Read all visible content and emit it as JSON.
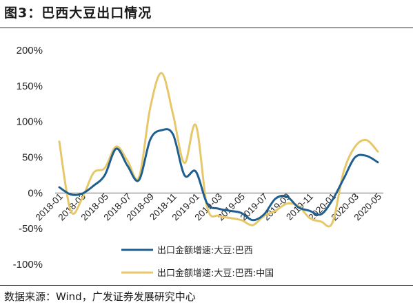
{
  "header": {
    "title": "图3：巴西大豆出口情况"
  },
  "footer": {
    "source": "数据来源：Wind，广发证券发展研究中心"
  },
  "chart_data": {
    "type": "line",
    "title": "",
    "xlabel": "",
    "ylabel": "",
    "ylim": [
      -100,
      200
    ],
    "y_ticks": [
      200,
      150,
      100,
      50,
      0,
      -50,
      -100
    ],
    "y_tick_labels": [
      "200%",
      "150%",
      "100%",
      "50%",
      "0%",
      "-50%",
      "-100%"
    ],
    "x": [
      "2018-01",
      "2018-02",
      "2018-03",
      "2018-04",
      "2018-05",
      "2018-06",
      "2018-07",
      "2018-08",
      "2018-09",
      "2018-10",
      "2018-11",
      "2018-12",
      "2019-01",
      "2019-02",
      "2019-03",
      "2019-04",
      "2019-05",
      "2019-06",
      "2019-07",
      "2019-08",
      "2019-09",
      "2019-10",
      "2019-11",
      "2019-12",
      "2020-01",
      "2020-02",
      "2020-03",
      "2020-04",
      "2020-05"
    ],
    "x_tick_labels": [
      "2018-01",
      "2018-03",
      "2018-05",
      "2018-07",
      "2018-09",
      "2018-11",
      "2019-01",
      "2019-03",
      "2019-05",
      "2019-07",
      "2019-09",
      "2019-11",
      "2020-01",
      "2020-03",
      "2020-05"
    ],
    "grid": false,
    "legend_position": "bottom",
    "series": [
      {
        "name": "出口金额增速:大豆:巴西",
        "color": "#1f5f8f",
        "values": [
          8,
          -2,
          -1,
          10,
          25,
          62,
          38,
          18,
          75,
          88,
          82,
          25,
          30,
          -15,
          -22,
          -25,
          -28,
          -38,
          -30,
          -8,
          -5,
          -20,
          -25,
          -30,
          -10,
          20,
          50,
          52,
          43
        ]
      },
      {
        "name": "出口金额增速:大豆:巴西:中国",
        "color": "#e6c86a",
        "values": [
          72,
          -25,
          -8,
          28,
          35,
          65,
          45,
          22,
          120,
          168,
          110,
          42,
          95,
          -20,
          -32,
          -35,
          -38,
          -45,
          -32,
          -25,
          -15,
          -18,
          -35,
          -40,
          -42,
          30,
          65,
          74,
          58
        ]
      }
    ]
  }
}
